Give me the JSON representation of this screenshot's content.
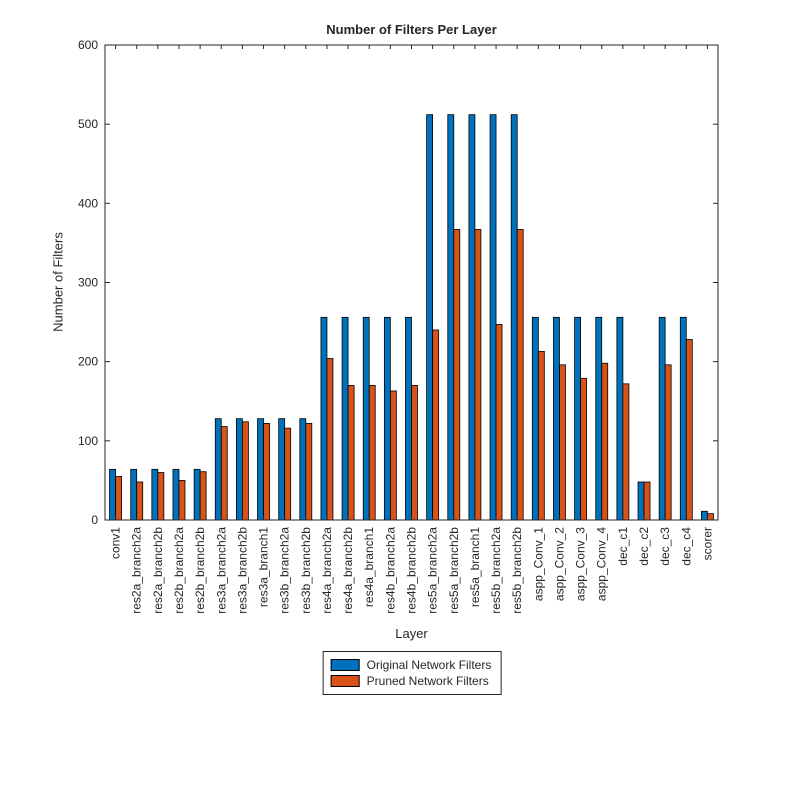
{
  "chart_data": {
    "type": "bar",
    "title": "Number of Filters Per Layer",
    "xlabel": "Layer",
    "ylabel": "Number of Filters",
    "ylim": [
      0,
      600
    ],
    "yticks": [
      0,
      100,
      200,
      300,
      400,
      500,
      600
    ],
    "grid": false,
    "legend_position": "below",
    "axis_color": "#262626",
    "bar_edge_color": "#000000",
    "categories": [
      "conv1",
      "res2a_branch2a",
      "res2a_branch2b",
      "res2b_branch2a",
      "res2b_branch2b",
      "res3a_branch2a",
      "res3a_branch2b",
      "res3a_branch1",
      "res3b_branch2a",
      "res3b_branch2b",
      "res4a_branch2a",
      "res4a_branch2b",
      "res4a_branch1",
      "res4b_branch2a",
      "res4b_branch2b",
      "res5a_branch2a",
      "res5a_branch2b",
      "res5a_branch1",
      "res5b_branch2a",
      "res5b_branch2b",
      "aspp_Conv_1",
      "aspp_Conv_2",
      "aspp_Conv_3",
      "aspp_Conv_4",
      "dec_c1",
      "dec_c2",
      "dec_c3",
      "dec_c4",
      "scorer"
    ],
    "series": [
      {
        "name": "Original Network Filters",
        "color": "#0072BD",
        "values": [
          64,
          64,
          64,
          64,
          64,
          128,
          128,
          128,
          128,
          128,
          256,
          256,
          256,
          256,
          256,
          512,
          512,
          512,
          512,
          512,
          256,
          256,
          256,
          256,
          256,
          48,
          256,
          256,
          11
        ]
      },
      {
        "name": "Pruned Network Filters",
        "color": "#D95319",
        "values": [
          55,
          48,
          60,
          50,
          61,
          118,
          124,
          122,
          116,
          122,
          204,
          170,
          170,
          163,
          170,
          240,
          367,
          367,
          247,
          367,
          213,
          196,
          179,
          198,
          172,
          48,
          196,
          228,
          8
        ]
      }
    ]
  }
}
